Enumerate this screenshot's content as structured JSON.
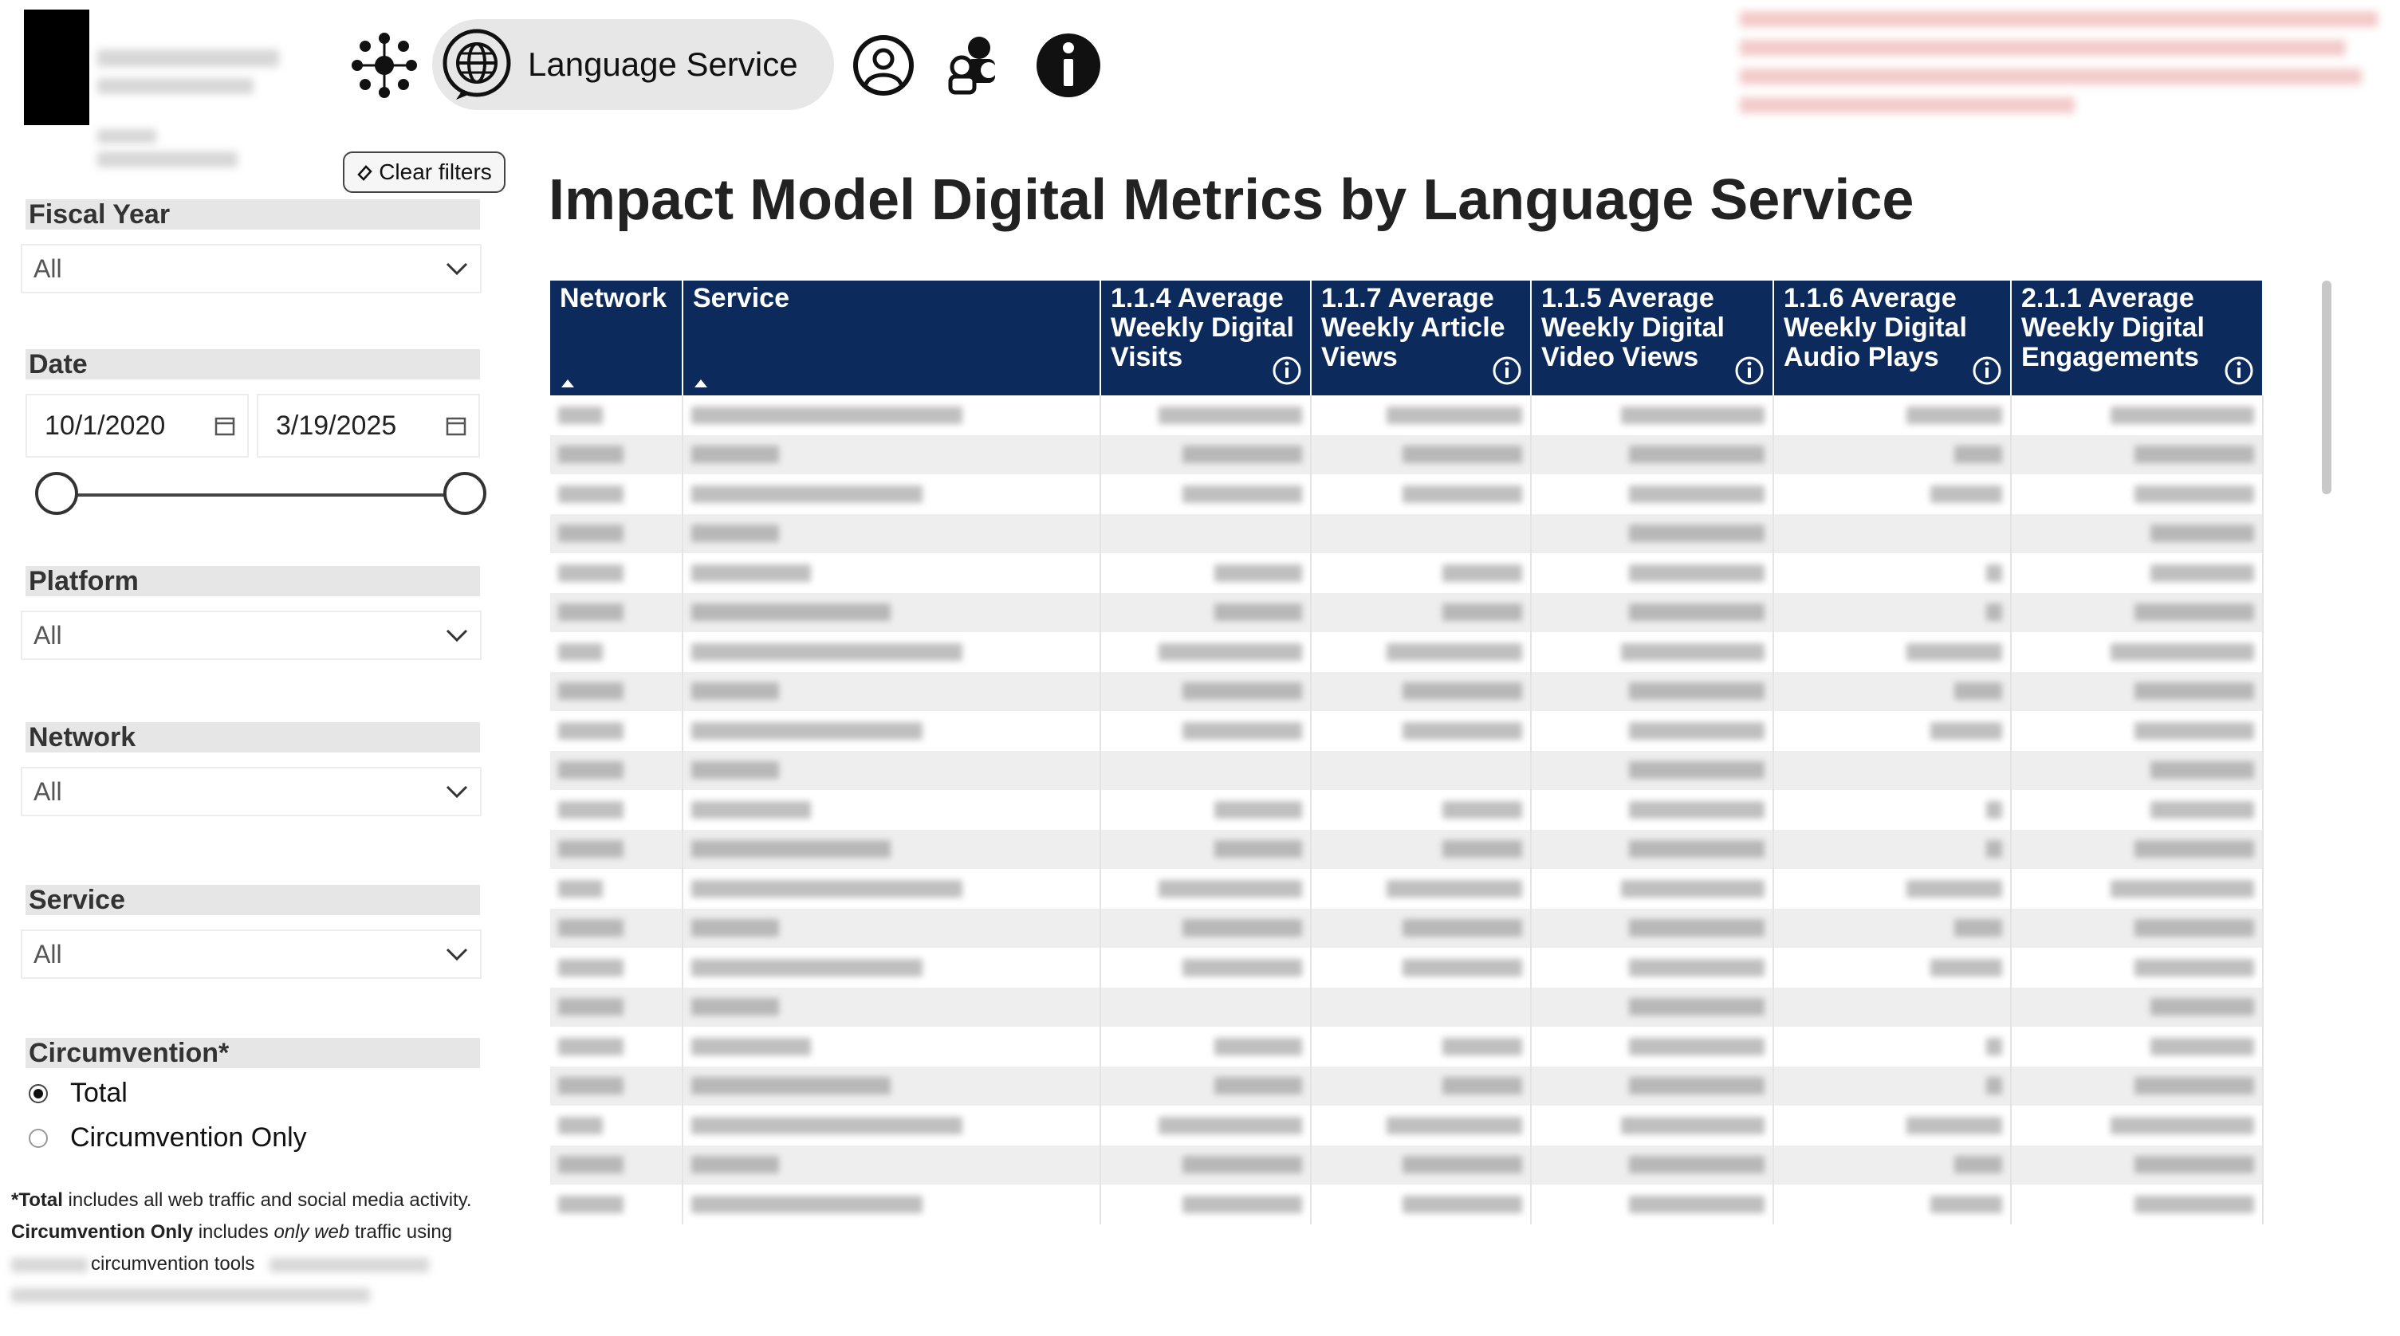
{
  "nav": {
    "active_label": "Language Service",
    "icons": [
      "network-hub-icon",
      "globe-chat-icon",
      "user-icon",
      "user-group-icon",
      "info-icon"
    ]
  },
  "clear_filters_label": "Clear filters",
  "filters": {
    "fiscal_year": {
      "label": "Fiscal Year",
      "value": "All"
    },
    "date": {
      "label": "Date",
      "start": "10/1/2020",
      "end": "3/19/2025",
      "range_fraction": [
        0,
        1
      ]
    },
    "platform": {
      "label": "Platform",
      "value": "All"
    },
    "network": {
      "label": "Network",
      "value": "All"
    },
    "service": {
      "label": "Service",
      "value": "All"
    },
    "circumvention": {
      "label": "Circumvention*",
      "options": [
        "Total",
        "Circumvention Only"
      ],
      "selected": "Total"
    }
  },
  "footnote": {
    "total_bold": "*Total",
    "total_rest": " includes all web traffic and social media activity.",
    "circ_bold": "Circumvention Only",
    "circ_mid1": " includes ",
    "circ_italic": "only web",
    "circ_mid2": " traffic using",
    "line3": "circumvention tools"
  },
  "main": {
    "title": "Impact Model Digital Metrics by Language Service",
    "columns": [
      "Network",
      "Service",
      "1.1.4 Average Weekly Digital Visits",
      "1.1.7 Average Weekly Article Views",
      "1.1.5 Average Weekly Digital Video Views",
      "1.1.6 Average Weekly Digital Audio Plays",
      "2.1.1 Average Weekly Digital Engagements"
    ],
    "row_count": 21
  },
  "colors": {
    "header_bg": "#0d2a5c",
    "row_alt": "#eeeeee",
    "filter_label_bg": "#e6e6e6",
    "pill_bg": "#e7e7e7"
  }
}
